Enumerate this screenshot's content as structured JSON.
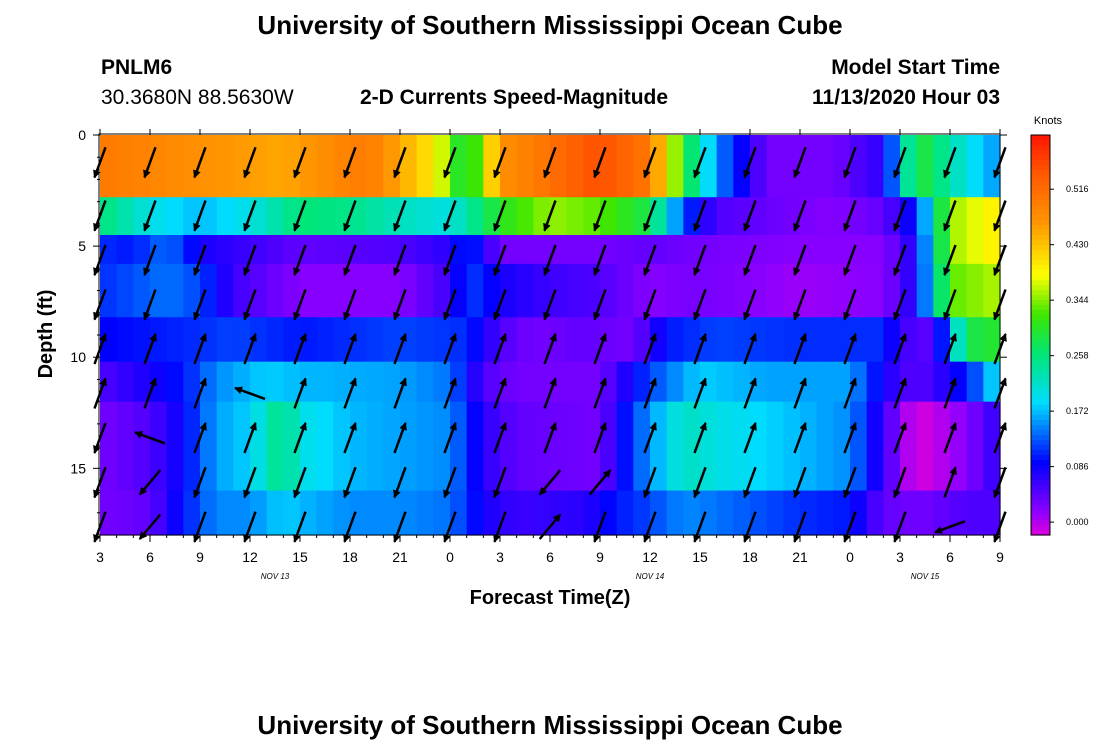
{
  "page": {
    "title": "University of Southern Mississippi Ocean Cube",
    "footer_title": "University of Southern Mississippi Ocean Cube",
    "station_id": "PNLM6",
    "station_coords": "30.3680N 88.5630W",
    "model_start_label": "Model Start Time",
    "model_start_value": "11/13/2020 Hour 03"
  },
  "chart_data": {
    "type": "heatmap",
    "title": "2-D Currents Speed-Magnitude",
    "xlabel": "Forecast Time(Z)",
    "ylabel": "Depth (ft)",
    "units": "Knots",
    "x_tick_labels": [
      "3",
      "6",
      "9",
      "12",
      "15",
      "18",
      "21",
      "0",
      "3",
      "6",
      "9",
      "12",
      "15",
      "18",
      "21",
      "0",
      "3",
      "6",
      "9"
    ],
    "x_hours_from_start": [
      0,
      3,
      6,
      9,
      12,
      15,
      18,
      21,
      24,
      27,
      30,
      33,
      36,
      39,
      42,
      45,
      48,
      51,
      54
    ],
    "date_labels": [
      {
        "label": "NOV 13",
        "hour": 10.5
      },
      {
        "label": "NOV 14",
        "hour": 33
      },
      {
        "label": "NOV 15",
        "hour": 49.5
      }
    ],
    "y_ticks": [
      0,
      5,
      10,
      15
    ],
    "ylim": [
      0,
      18
    ],
    "colorbar_ticks": [
      "0.516",
      "0.430",
      "0.344",
      "0.258",
      "0.172",
      "0.086",
      "0.000"
    ],
    "colorbar_range": [
      -0.02,
      0.6
    ],
    "grid": false,
    "depth_levels": [
      0,
      1,
      2,
      3,
      4,
      5,
      6,
      7,
      8,
      9,
      10,
      11,
      12,
      13,
      14,
      15,
      16,
      17,
      18
    ],
    "bands": [
      {
        "depth": [
          0,
          2.8
        ],
        "profile": [
          [
            0,
            0.5
          ],
          [
            6,
            0.47
          ],
          [
            11,
            0.45
          ],
          [
            16,
            0.5
          ],
          [
            20,
            0.4
          ],
          [
            22,
            0.27
          ],
          [
            24,
            0.47
          ],
          [
            30,
            0.55
          ],
          [
            33,
            0.5
          ],
          [
            35,
            0.3
          ],
          [
            37,
            0.15
          ],
          [
            40,
            0.03
          ],
          [
            44,
            0.03
          ],
          [
            47,
            0.07
          ],
          [
            49,
            0.3
          ],
          [
            52,
            0.2
          ],
          [
            54,
            0.15
          ]
        ]
      },
      {
        "depth": [
          2.8,
          4.5
        ],
        "profile": [
          [
            0,
            0.26
          ],
          [
            3,
            0.2
          ],
          [
            6,
            0.17
          ],
          [
            9,
            0.2
          ],
          [
            12,
            0.26
          ],
          [
            15,
            0.25
          ],
          [
            18,
            0.22
          ],
          [
            21,
            0.2
          ],
          [
            24,
            0.3
          ],
          [
            27,
            0.35
          ],
          [
            30,
            0.33
          ],
          [
            33,
            0.28
          ],
          [
            35,
            0.12
          ],
          [
            37,
            0.05
          ],
          [
            44,
            0.02
          ],
          [
            47,
            0.04
          ],
          [
            49,
            0.1
          ],
          [
            51,
            0.35
          ],
          [
            54,
            0.4
          ]
        ]
      },
      {
        "depth": [
          4.5,
          5.8
        ],
        "profile": [
          [
            0,
            0.11
          ],
          [
            2,
            0.1
          ],
          [
            4,
            0.14
          ],
          [
            6,
            0.08
          ],
          [
            9,
            0.06
          ],
          [
            12,
            0.04
          ],
          [
            18,
            0.05
          ],
          [
            21,
            0.07
          ],
          [
            22,
            0.12
          ],
          [
            24,
            0.03
          ],
          [
            30,
            0.03
          ],
          [
            33,
            0.04
          ],
          [
            36,
            0.03
          ],
          [
            42,
            0.02
          ],
          [
            47,
            0.02
          ],
          [
            49,
            0.08
          ],
          [
            51,
            0.35
          ],
          [
            54,
            0.4
          ]
        ]
      },
      {
        "depth": [
          5.8,
          8.2
        ],
        "profile": [
          [
            0,
            0.11
          ],
          [
            4,
            0.14
          ],
          [
            6,
            0.12
          ],
          [
            8,
            0.06
          ],
          [
            12,
            0.02
          ],
          [
            18,
            0.02
          ],
          [
            21,
            0.06
          ],
          [
            22,
            0.12
          ],
          [
            24,
            0.08
          ],
          [
            27,
            0.06
          ],
          [
            30,
            0.05
          ],
          [
            33,
            0.02
          ],
          [
            36,
            0.03
          ],
          [
            42,
            0.01
          ],
          [
            47,
            0.02
          ],
          [
            49,
            0.08
          ],
          [
            51,
            0.33
          ],
          [
            54,
            0.36
          ]
        ]
      },
      {
        "depth": [
          8.2,
          10.2
        ],
        "profile": [
          [
            0,
            0.09
          ],
          [
            3,
            0.1
          ],
          [
            6,
            0.11
          ],
          [
            8,
            0.12
          ],
          [
            12,
            0.1
          ],
          [
            18,
            0.12
          ],
          [
            22,
            0.11
          ],
          [
            24,
            0.05
          ],
          [
            26,
            0.03
          ],
          [
            29,
            0.04
          ],
          [
            32,
            0.03
          ],
          [
            34,
            0.1
          ],
          [
            37,
            0.12
          ],
          [
            42,
            0.11
          ],
          [
            47,
            0.11
          ],
          [
            48,
            0.06
          ],
          [
            50,
            0.04
          ],
          [
            52,
            0.28
          ],
          [
            54,
            0.3
          ]
        ]
      },
      {
        "depth": [
          10.2,
          12
        ],
        "profile": [
          [
            0,
            0.05
          ],
          [
            3,
            0.08
          ],
          [
            5,
            0.1
          ],
          [
            7,
            0.15
          ],
          [
            10,
            0.18
          ],
          [
            12,
            0.17
          ],
          [
            18,
            0.16
          ],
          [
            21,
            0.14
          ],
          [
            23,
            0.05
          ],
          [
            25,
            0.03
          ],
          [
            30,
            0.03
          ],
          [
            33,
            0.12
          ],
          [
            36,
            0.18
          ],
          [
            40,
            0.16
          ],
          [
            45,
            0.16
          ],
          [
            47,
            0.08
          ],
          [
            49,
            0.04
          ],
          [
            52,
            0.1
          ],
          [
            54,
            0.2
          ]
        ]
      },
      {
        "depth": [
          12,
          16
        ],
        "profile": [
          [
            0,
            0.03
          ],
          [
            3,
            0.05
          ],
          [
            5,
            0.09
          ],
          [
            7,
            0.16
          ],
          [
            9,
            0.18
          ],
          [
            11,
            0.26
          ],
          [
            12,
            0.2
          ],
          [
            15,
            0.17
          ],
          [
            18,
            0.16
          ],
          [
            21,
            0.15
          ],
          [
            23,
            0.07
          ],
          [
            25,
            0.04
          ],
          [
            30,
            0.03
          ],
          [
            32,
            0.12
          ],
          [
            35,
            0.22
          ],
          [
            37,
            0.2
          ],
          [
            42,
            0.17
          ],
          [
            45,
            0.15
          ],
          [
            47,
            0.06
          ],
          [
            49,
            -0.02
          ],
          [
            52,
            0.02
          ],
          [
            54,
            0.07
          ]
        ]
      },
      {
        "depth": [
          16,
          18
        ],
        "profile": [
          [
            0,
            0.03
          ],
          [
            3,
            0.04
          ],
          [
            5,
            0.1
          ],
          [
            7,
            0.15
          ],
          [
            9,
            0.15
          ],
          [
            11,
            0.18
          ],
          [
            12,
            0.17
          ],
          [
            15,
            0.15
          ],
          [
            18,
            0.15
          ],
          [
            21,
            0.14
          ],
          [
            23,
            0.08
          ],
          [
            25,
            0.06
          ],
          [
            29,
            0.07
          ],
          [
            31,
            0.1
          ],
          [
            33,
            0.12
          ],
          [
            35,
            0.15
          ],
          [
            37,
            0.14
          ],
          [
            42,
            0.11
          ],
          [
            45,
            0.1
          ],
          [
            47,
            0.04
          ],
          [
            49,
            0.03
          ],
          [
            52,
            0.05
          ],
          [
            54,
            0.05
          ]
        ]
      }
    ],
    "vector_columns": {
      "hours": [
        -0.3,
        3,
        6,
        9,
        12,
        15,
        18,
        21,
        24,
        27,
        30,
        33,
        36,
        39,
        42,
        45,
        48,
        51,
        54
      ],
      "depths": [
        0.6,
        3,
        5,
        7,
        9,
        11,
        13,
        15,
        17
      ],
      "row_directions": [
        [
          0,
          0,
          0,
          0,
          0,
          0,
          0,
          0,
          0,
          0,
          0,
          0,
          0,
          0,
          0,
          0,
          0,
          0,
          0
        ],
        [
          0,
          0,
          0,
          0,
          0,
          0,
          0,
          0,
          0,
          0,
          0,
          0,
          0,
          0,
          0,
          0,
          0,
          0,
          0
        ],
        [
          0,
          0,
          0,
          0,
          0,
          0,
          0,
          0,
          0,
          0,
          0,
          0,
          0,
          0,
          0,
          0,
          0,
          0,
          0
        ],
        [
          0,
          0,
          0,
          0,
          0,
          0,
          0,
          0,
          0,
          0,
          0,
          0,
          0,
          0,
          0,
          0,
          0,
          0,
          0
        ],
        [
          180,
          180,
          180,
          180,
          180,
          180,
          180,
          180,
          180,
          180,
          180,
          180,
          180,
          180,
          180,
          180,
          180,
          180,
          180
        ],
        [
          180,
          180,
          180,
          90,
          180,
          180,
          180,
          180,
          180,
          180,
          180,
          180,
          180,
          180,
          180,
          180,
          180,
          180,
          180
        ],
        [
          0,
          90,
          180,
          180,
          180,
          180,
          180,
          180,
          180,
          180,
          180,
          180,
          180,
          180,
          180,
          180,
          180,
          180,
          180
        ],
        [
          0,
          20,
          0,
          0,
          0,
          0,
          0,
          0,
          0,
          20,
          200,
          0,
          0,
          0,
          0,
          0,
          0,
          180,
          0
        ],
        [
          0,
          20,
          0,
          0,
          0,
          0,
          0,
          0,
          0,
          200,
          0,
          0,
          0,
          0,
          0,
          0,
          0,
          50,
          0
        ]
      ]
    }
  }
}
